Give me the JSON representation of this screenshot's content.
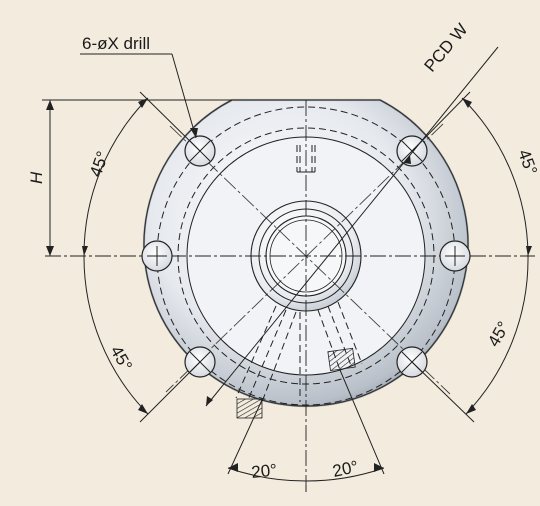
{
  "labels": {
    "drill": "6-øX drill",
    "pcd": "PCD W",
    "height": "H",
    "angle_upper_left": "45°",
    "angle_upper_right": "45°",
    "angle_lower_left": "45°",
    "angle_lower_right": "45°",
    "angle_bottom_left": "20°",
    "angle_bottom_right": "20°"
  },
  "colors": {
    "background": "#f3ecde",
    "flange_light": "#f7f8fa",
    "flange_dark": "#7d8793",
    "line": "#222222"
  }
}
